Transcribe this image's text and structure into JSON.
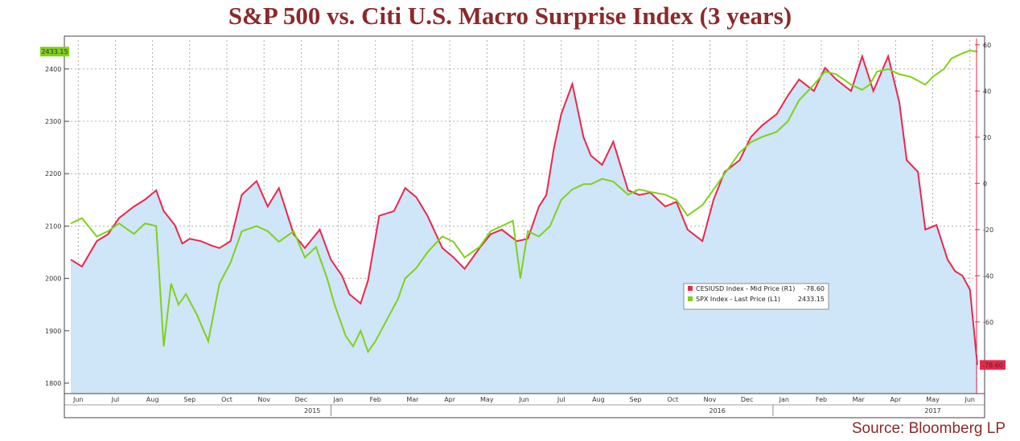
{
  "title": "S&P 500 vs. Citi U.S. Macro Surprise Index (3 years)",
  "source": "Source: Bloomberg LP",
  "chart_data": {
    "type": "line",
    "grid": true,
    "legend_placement": "center-right",
    "x_tick_labels": [
      "Jun",
      "Jul",
      "Aug",
      "Sep",
      "Oct",
      "Nov",
      "Dec",
      "Jan",
      "Feb",
      "Mar",
      "Apr",
      "May",
      "Jun",
      "Jul",
      "Aug",
      "Sep",
      "Oct",
      "Nov",
      "Dec",
      "Jan",
      "Feb",
      "Mar",
      "Apr",
      "May",
      "Jun"
    ],
    "year_labels": [
      "2015",
      "2016",
      "2017"
    ],
    "y_left_ticks": [
      "1800",
      "1900",
      "2000",
      "2100",
      "2200",
      "2300",
      "2400"
    ],
    "y_left_range": [
      1780,
      2455
    ],
    "y_right_ticks": [
      "60",
      "40",
      "20",
      "0",
      "-20",
      "-40",
      "-60"
    ],
    "y_right_range": [
      -91,
      62
    ],
    "left_last_badge": "2433.15",
    "right_last_badge": "-78.60",
    "series": [
      {
        "name": "CESIUSD Index - Mid Price (R1)",
        "last_value": "-78.60",
        "color": "#e8284a",
        "fill": "#cfe5f8",
        "axis": "right",
        "x": [
          0,
          0.3,
          0.7,
          1,
          1.3,
          1.7,
          2,
          2.3,
          2.5,
          2.8,
          3,
          3.2,
          3.5,
          3.8,
          4,
          4.3,
          4.6,
          5,
          5.3,
          5.6,
          6,
          6.3,
          6.7,
          7,
          7.3,
          7.5,
          7.8,
          8,
          8.3,
          8.7,
          9,
          9.3,
          9.6,
          10,
          10.3,
          10.6,
          11,
          11.3,
          11.6,
          12,
          12.3,
          12.6,
          12.8,
          13,
          13.2,
          13.5,
          13.8,
          14,
          14.3,
          14.6,
          15,
          15.3,
          15.6,
          16,
          16.3,
          16.6,
          17,
          17.3,
          17.6,
          18,
          18.3,
          18.6,
          19,
          19.3,
          19.6,
          20,
          20.3,
          20.6,
          21,
          21.3,
          21.6,
          22,
          22.3,
          22.5,
          22.8,
          23,
          23.3,
          23.6,
          23.8,
          24,
          24.2,
          24.4
        ],
        "y": [
          -33,
          -36,
          -25,
          -22,
          -15,
          -10,
          -7,
          -3,
          -12,
          -18,
          -26,
          -24,
          -25,
          -27,
          -28,
          -25,
          -5,
          1,
          -10,
          -2,
          -22,
          -28,
          -20,
          -33,
          -40,
          -48,
          -52,
          -42,
          -14,
          -12,
          -2,
          -6,
          -14,
          -28,
          -32,
          -37,
          -28,
          -22,
          -20,
          -25,
          -24,
          -10,
          -5,
          15,
          30,
          43,
          20,
          12,
          8,
          18,
          -3,
          -5,
          -4,
          -10,
          -8,
          -20,
          -25,
          -7,
          5,
          10,
          20,
          25,
          30,
          38,
          45,
          40,
          50,
          45,
          40,
          55,
          40,
          55,
          35,
          10,
          5,
          -20,
          -18,
          -33,
          -38,
          -40,
          -46,
          -78.6
        ]
      },
      {
        "name": "SPX Index - Last Price (L1)",
        "last_value": "2433.15",
        "color": "#7fd11a",
        "axis": "left",
        "x": [
          0,
          0.3,
          0.7,
          1,
          1.3,
          1.7,
          2,
          2.3,
          2.5,
          2.7,
          2.9,
          3.1,
          3.4,
          3.7,
          4,
          4.3,
          4.6,
          5,
          5.3,
          5.6,
          6,
          6.3,
          6.6,
          6.9,
          7.1,
          7.4,
          7.6,
          7.8,
          8,
          8.2,
          8.5,
          8.8,
          9,
          9.3,
          9.6,
          10,
          10.3,
          10.6,
          11,
          11.3,
          11.6,
          11.9,
          12.1,
          12.3,
          12.6,
          12.9,
          13.2,
          13.5,
          13.8,
          14,
          14.3,
          14.6,
          15,
          15.3,
          15.6,
          16,
          16.3,
          16.6,
          17,
          17.3,
          17.6,
          18,
          18.3,
          18.6,
          19,
          19.3,
          19.6,
          20,
          20.3,
          20.6,
          21,
          21.3,
          21.5,
          21.7,
          22,
          22.3,
          22.6,
          23,
          23.2,
          23.5,
          23.7,
          24,
          24.2,
          24.4
        ],
        "y": [
          2105,
          2115,
          2080,
          2090,
          2105,
          2085,
          2105,
          2100,
          1870,
          1990,
          1950,
          1970,
          1930,
          1880,
          1990,
          2030,
          2090,
          2100,
          2090,
          2070,
          2090,
          2040,
          2060,
          2000,
          1950,
          1890,
          1870,
          1900,
          1860,
          1880,
          1920,
          1960,
          2000,
          2020,
          2050,
          2080,
          2070,
          2040,
          2060,
          2090,
          2100,
          2110,
          2000,
          2090,
          2080,
          2100,
          2150,
          2170,
          2180,
          2180,
          2190,
          2185,
          2160,
          2170,
          2165,
          2160,
          2150,
          2120,
          2140,
          2170,
          2200,
          2240,
          2260,
          2270,
          2280,
          2300,
          2340,
          2370,
          2395,
          2390,
          2370,
          2360,
          2370,
          2395,
          2400,
          2390,
          2385,
          2370,
          2385,
          2400,
          2420,
          2430,
          2435,
          2433.15
        ]
      }
    ]
  }
}
